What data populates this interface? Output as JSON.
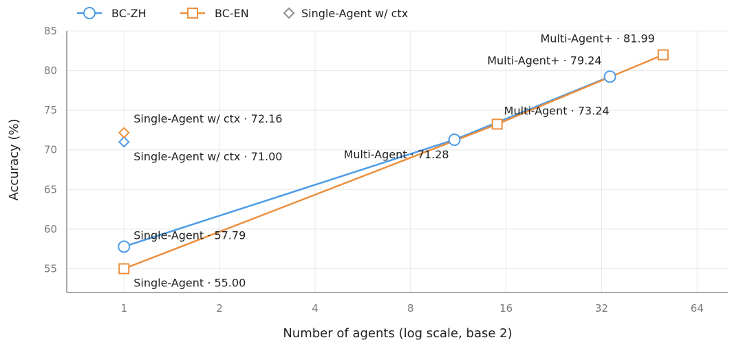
{
  "chart_data": {
    "type": "line",
    "xlabel": "Number of agents (log scale, base 2)",
    "ylabel": "Accuracy (%)",
    "x_scale": "log2",
    "xlim": [
      0.66,
      80
    ],
    "ylim": [
      52,
      85
    ],
    "xticks": [
      1,
      2,
      4,
      8,
      16,
      32,
      64
    ],
    "xtick_labels": [
      "1",
      "2",
      "4",
      "8",
      "16",
      "32",
      "64"
    ],
    "yticks": [
      55,
      60,
      65,
      70,
      75,
      80,
      85
    ],
    "ytick_labels": [
      "55",
      "60",
      "65",
      "70",
      "75",
      "80",
      "85"
    ],
    "grid": true,
    "legend_position": "top-left",
    "legend": [
      {
        "name": "BC-ZH",
        "marker": "circle",
        "color": "#4c9be6",
        "line": true
      },
      {
        "name": "BC-EN",
        "marker": "square",
        "color": "#ec8f3e",
        "line": true
      },
      {
        "name": "Single-Agent w/ ctx",
        "marker": "diamond",
        "color": "#8c8c8c",
        "line": false
      }
    ],
    "series": [
      {
        "name": "BC-ZH",
        "color": "#4c9be6",
        "marker": "circle",
        "x": [
          1,
          11,
          34
        ],
        "y": [
          57.79,
          71.28,
          79.24
        ],
        "labels": [
          "Single-Agent · 57.79",
          "Multi-Agent · 71.28",
          "Multi-Agent+ · 79.24"
        ]
      },
      {
        "name": "BC-EN",
        "color": "#ec8f3e",
        "marker": "square",
        "x": [
          1,
          15,
          50
        ],
        "y": [
          55.0,
          73.24,
          81.99
        ],
        "labels": [
          "Single-Agent · 55.00",
          "Multi-Agent · 73.24",
          "Multi-Agent+ · 81.99"
        ]
      }
    ],
    "extra_points": [
      {
        "x": 1,
        "y": 71.0,
        "color": "#4c9be6",
        "marker": "diamond",
        "label": "Single-Agent w/ ctx · 71.00"
      },
      {
        "x": 1,
        "y": 72.16,
        "color": "#ec8f3e",
        "marker": "diamond",
        "label": "Single-Agent w/ ctx · 72.16"
      }
    ]
  }
}
